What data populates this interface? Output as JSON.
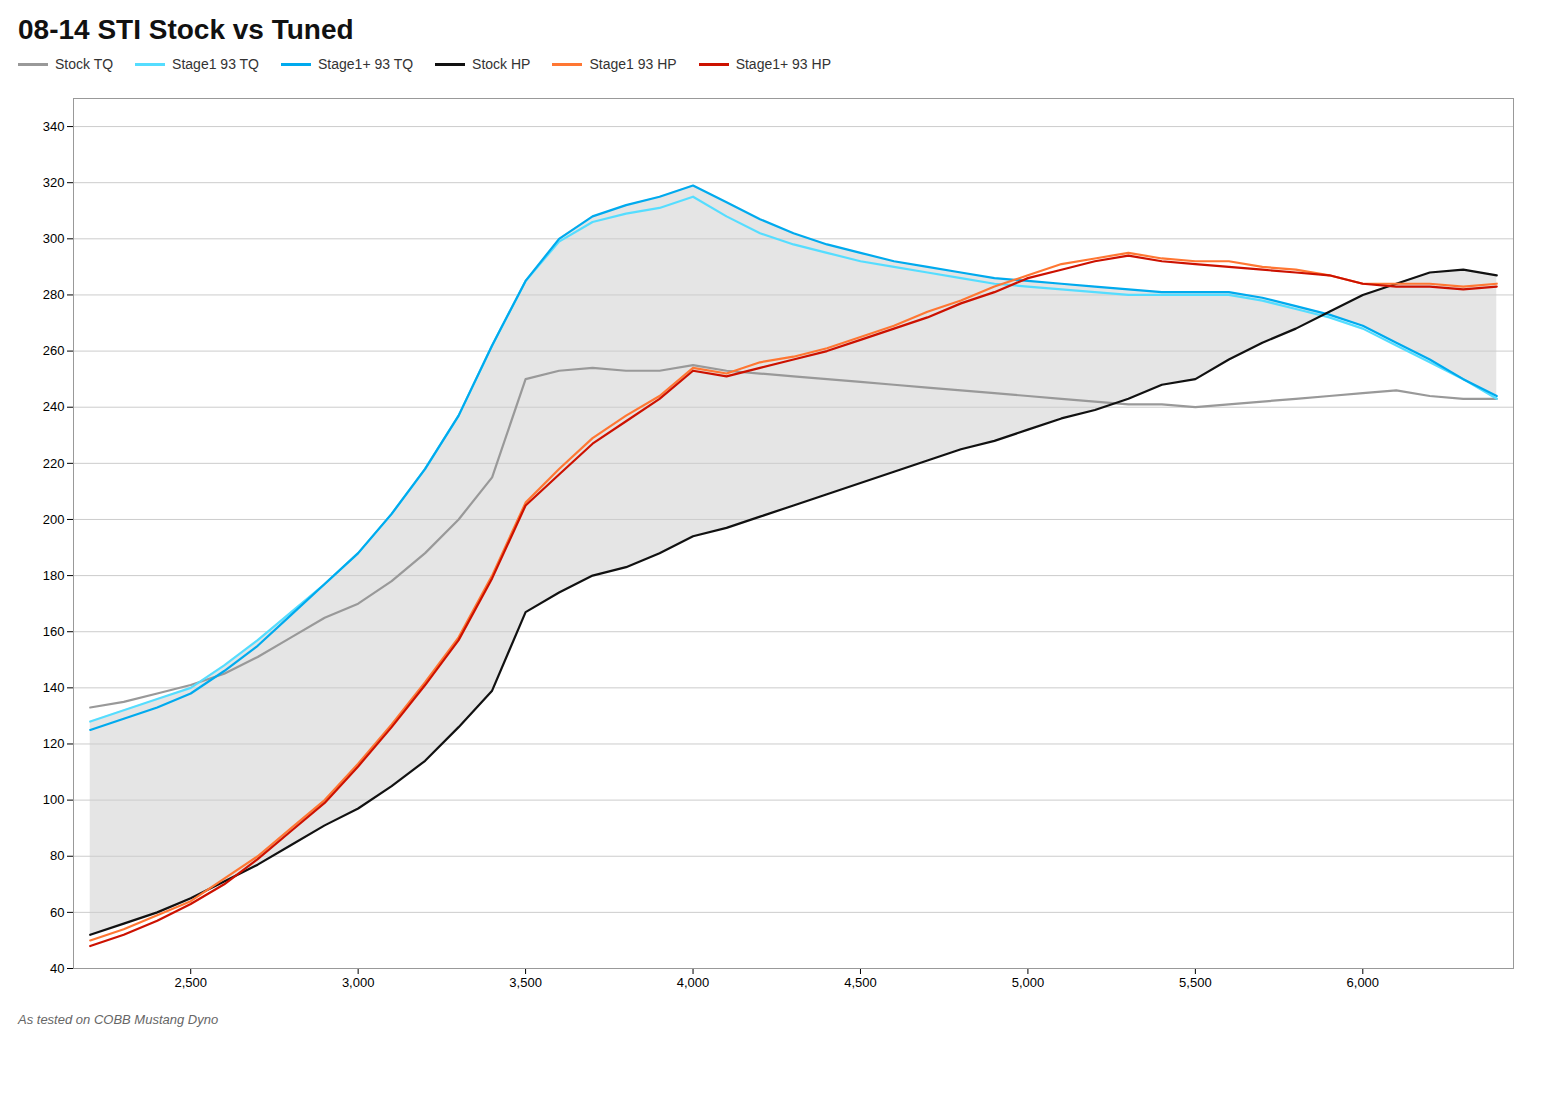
{
  "chart_data": {
    "type": "line",
    "title": "08-14 STI Stock vs Tuned",
    "subtitle": "As tested on COBB Mustang Dyno",
    "x": [
      2200,
      2300,
      2400,
      2500,
      2600,
      2700,
      2800,
      2900,
      3000,
      3100,
      3200,
      3300,
      3400,
      3500,
      3600,
      3700,
      3800,
      3900,
      4000,
      4100,
      4200,
      4300,
      4400,
      4500,
      4600,
      4700,
      4800,
      4900,
      5000,
      5100,
      5200,
      5300,
      5400,
      5500,
      5600,
      5700,
      5800,
      5900,
      6000,
      6100,
      6200,
      6300,
      6400
    ],
    "series": [
      {
        "name": "Stock TQ",
        "color": "#999999",
        "values": [
          133,
          135,
          138,
          141,
          145,
          151,
          158,
          165,
          170,
          178,
          188,
          200,
          215,
          250,
          253,
          254,
          253,
          253,
          255,
          253,
          252,
          251,
          250,
          249,
          248,
          247,
          246,
          245,
          244,
          243,
          242,
          241,
          241,
          240,
          241,
          242,
          243,
          244,
          245,
          246,
          244,
          243,
          243
        ]
      },
      {
        "name": "Stage1 93 TQ",
        "color": "#55ddff",
        "values": [
          128,
          132,
          136,
          140,
          148,
          157,
          167,
          177,
          188,
          202,
          218,
          237,
          262,
          285,
          299,
          306,
          309,
          311,
          315,
          308,
          302,
          298,
          295,
          292,
          290,
          288,
          286,
          284,
          283,
          282,
          281,
          280,
          280,
          280,
          280,
          278,
          275,
          272,
          268,
          262,
          256,
          250,
          243
        ]
      },
      {
        "name": "Stage1+ 93 TQ",
        "color": "#00aaee",
        "values": [
          125,
          129,
          133,
          138,
          146,
          155,
          166,
          177,
          188,
          202,
          218,
          237,
          262,
          285,
          300,
          308,
          312,
          315,
          319,
          313,
          307,
          302,
          298,
          295,
          292,
          290,
          288,
          286,
          285,
          284,
          283,
          282,
          281,
          281,
          281,
          279,
          276,
          273,
          269,
          263,
          257,
          250,
          244
        ]
      },
      {
        "name": "Stock HP",
        "color": "#111111",
        "values": [
          52,
          56,
          60,
          65,
          71,
          77,
          84,
          91,
          97,
          105,
          114,
          126,
          139,
          167,
          174,
          180,
          183,
          188,
          194,
          197,
          201,
          205,
          209,
          213,
          217,
          221,
          225,
          228,
          232,
          236,
          239,
          243,
          248,
          250,
          257,
          263,
          268,
          274,
          280,
          284,
          288,
          289,
          287
        ]
      },
      {
        "name": "Stage1 93 HP",
        "color": "#ff7733",
        "values": [
          50,
          54,
          59,
          64,
          72,
          80,
          90,
          100,
          113,
          127,
          142,
          158,
          180,
          206,
          218,
          229,
          237,
          244,
          254,
          252,
          256,
          258,
          261,
          265,
          269,
          274,
          278,
          283,
          287,
          291,
          293,
          295,
          293,
          292,
          292,
          290,
          289,
          287,
          284,
          284,
          284,
          283,
          284
        ]
      },
      {
        "name": "Stage1+ 93 HP",
        "color": "#cc1100",
        "values": [
          48,
          52,
          57,
          63,
          70,
          79,
          89,
          99,
          112,
          126,
          141,
          157,
          179,
          205,
          216,
          227,
          235,
          243,
          253,
          251,
          254,
          257,
          260,
          264,
          268,
          272,
          277,
          281,
          286,
          289,
          292,
          294,
          292,
          291,
          290,
          289,
          288,
          287,
          284,
          283,
          283,
          282,
          283
        ]
      }
    ],
    "fill": {
      "color": "#cccccc",
      "upper": [
        128,
        132,
        136,
        140,
        148,
        157,
        167,
        177,
        188,
        202,
        218,
        237,
        262,
        285,
        300,
        308,
        312,
        315,
        319,
        313,
        307,
        302,
        298,
        295,
        292,
        290,
        288,
        286,
        285,
        284,
        283,
        282,
        281,
        281,
        281,
        279,
        276,
        273,
        269,
        263,
        257,
        250,
        244
      ],
      "lower": [
        52,
        56,
        60,
        65,
        71,
        77,
        84,
        91,
        97,
        105,
        114,
        126,
        139,
        167,
        174,
        180,
        183,
        188,
        194,
        197,
        201,
        205,
        209,
        213,
        217,
        221,
        225,
        228,
        232,
        236,
        239,
        243,
        248,
        250,
        257,
        263,
        268,
        274,
        280,
        284,
        288,
        289,
        287
      ]
    },
    "xlim": [
      2150,
      6450
    ],
    "xticks": [
      {
        "value": 2500,
        "label": "2,500"
      },
      {
        "value": 3000,
        "label": "3,000"
      },
      {
        "value": 3500,
        "label": "3,500"
      },
      {
        "value": 4000,
        "label": "4,000"
      },
      {
        "value": 4500,
        "label": "4,500"
      },
      {
        "value": 5000,
        "label": "5,000"
      },
      {
        "value": 5500,
        "label": "5,500"
      },
      {
        "value": 6000,
        "label": "6,000"
      }
    ],
    "ylim": [
      40,
      350
    ],
    "yticks": [
      40,
      60,
      80,
      100,
      120,
      140,
      160,
      180,
      200,
      220,
      240,
      260,
      280,
      300,
      320,
      340
    ],
    "grid": "y",
    "legend": "top"
  }
}
